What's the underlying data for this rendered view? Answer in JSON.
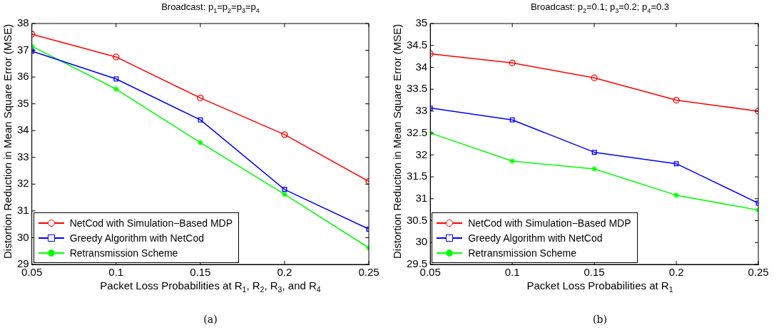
{
  "chart_data": [
    {
      "type": "line",
      "title": "Broadcast: p$_{1}$=p$_{2}$=p$_{3}$=p$_{4}$",
      "xlabel": "Packet Loss Probabilities at R$_{1}$, R$_{2}$, R$_{3}$, and R$_{4}$",
      "ylabel": "Distortion Reduction in Mean Square Error (MSE)",
      "annotations": [
        "(a)"
      ],
      "x": [
        0.05,
        0.1,
        0.15,
        0.2,
        0.25
      ],
      "xlim": [
        0.05,
        0.25
      ],
      "xticks": [
        0.05,
        0.1,
        0.15,
        0.2,
        0.25
      ],
      "ylim": [
        29,
        38
      ],
      "yticks": [
        29,
        30,
        31,
        32,
        33,
        34,
        35,
        36,
        37,
        38
      ],
      "grid": false,
      "legend": "bottom left",
      "line_style": "solid",
      "series": [
        {
          "name": "NetCod with Simulation−Based MDP",
          "color": "#ff0000",
          "marker": "circle",
          "values": [
            37.6,
            36.75,
            35.22,
            33.85,
            32.1
          ]
        },
        {
          "name": "Greedy Algorithm with NetCod",
          "color": "#0000ff",
          "marker": "square",
          "values": [
            36.97,
            35.93,
            34.4,
            31.8,
            30.32
          ]
        },
        {
          "name": "Retransmission Scheme",
          "color": "#00ff00",
          "marker": "cross",
          "values": [
            37.15,
            35.55,
            33.55,
            31.62,
            29.62
          ]
        }
      ]
    },
    {
      "type": "line",
      "title": "Broadcast: p$_{2}$=0.1; p$_{3}$=0.2; p$_{4}$=0.3",
      "xlabel": "Packet Loss Probabilities at R$_{1}$",
      "ylabel": "Distortion Reduction in Mean Square Error (MSE)",
      "annotations": [
        "(b)"
      ],
      "x": [
        0.05,
        0.1,
        0.15,
        0.2,
        0.25
      ],
      "xlim": [
        0.05,
        0.25
      ],
      "xticks": [
        0.05,
        0.1,
        0.15,
        0.2,
        0.25
      ],
      "ylim": [
        29.5,
        35
      ],
      "yticks": [
        29.5,
        30,
        30.5,
        31,
        31.5,
        32,
        32.5,
        33,
        33.5,
        34,
        34.5,
        35
      ],
      "grid": false,
      "legend": "bottom left",
      "line_style": "solid",
      "series": [
        {
          "name": "NetCod with Simulation−Based MDP",
          "color": "#ff0000",
          "marker": "circle",
          "values": [
            34.31,
            34.1,
            33.76,
            33.25,
            33.0
          ]
        },
        {
          "name": "Greedy Algorithm with NetCod",
          "color": "#0000ff",
          "marker": "square",
          "values": [
            33.07,
            32.8,
            32.06,
            31.8,
            30.9
          ]
        },
        {
          "name": "Retransmission Scheme",
          "color": "#00ff00",
          "marker": "cross",
          "values": [
            32.5,
            31.86,
            31.68,
            31.08,
            30.74
          ]
        }
      ]
    }
  ]
}
